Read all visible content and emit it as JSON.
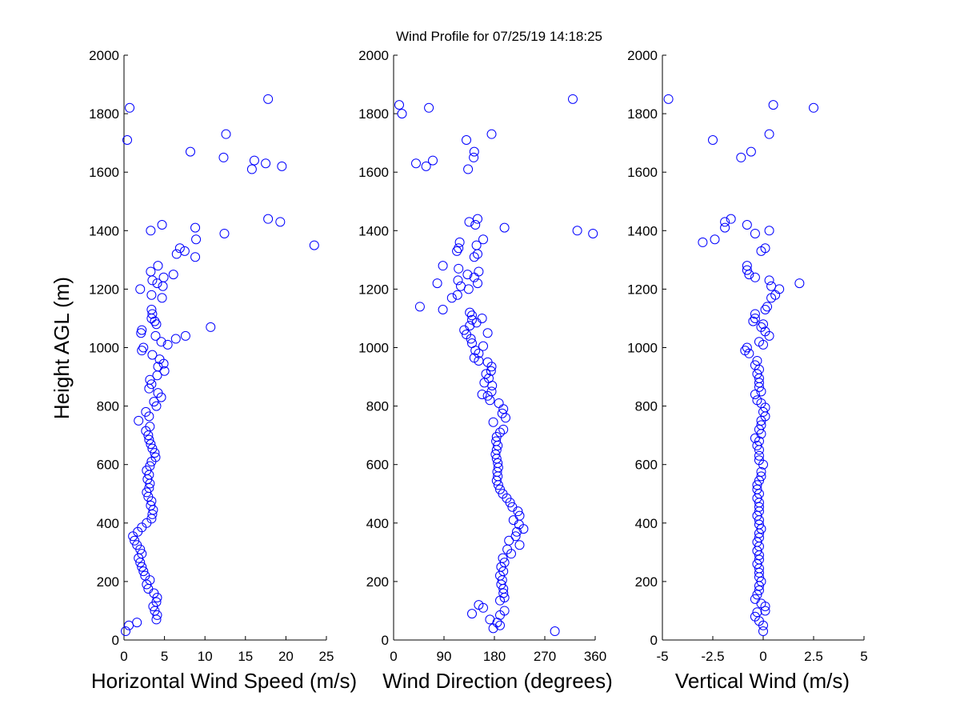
{
  "title": "Wind Profile for  07/25/19 14:18:25",
  "chart_data": [
    {
      "type": "scatter",
      "xlabel": "Horizontal Wind Speed (m/s)",
      "ylabel": "Height AGL (m)",
      "xlim": [
        0,
        25
      ],
      "ylim": [
        0,
        2000
      ],
      "xticks": [
        "0",
        "5",
        "10",
        "15",
        "20",
        "25"
      ],
      "yticks": [
        "0",
        "200",
        "400",
        "600",
        "800",
        "1000",
        "1200",
        "1400",
        "1600",
        "1800",
        "2000"
      ],
      "marker_color": "#0000ff",
      "points": [
        [
          0.2,
          30
        ],
        [
          0.6,
          50
        ],
        [
          1.6,
          60
        ],
        [
          4.0,
          70
        ],
        [
          4.1,
          85
        ],
        [
          3.8,
          100
        ],
        [
          3.6,
          115
        ],
        [
          4.0,
          130
        ],
        [
          4.1,
          145
        ],
        [
          3.7,
          160
        ],
        [
          3.0,
          175
        ],
        [
          2.8,
          190
        ],
        [
          3.2,
          205
        ],
        [
          2.6,
          220
        ],
        [
          2.4,
          235
        ],
        [
          2.2,
          250
        ],
        [
          2.0,
          265
        ],
        [
          1.8,
          280
        ],
        [
          2.2,
          295
        ],
        [
          2.0,
          310
        ],
        [
          1.6,
          325
        ],
        [
          1.3,
          340
        ],
        [
          1.1,
          355
        ],
        [
          1.7,
          370
        ],
        [
          2.2,
          385
        ],
        [
          2.8,
          400
        ],
        [
          3.4,
          415
        ],
        [
          3.5,
          430
        ],
        [
          3.6,
          445
        ],
        [
          3.3,
          460
        ],
        [
          3.4,
          475
        ],
        [
          3.0,
          490
        ],
        [
          2.8,
          505
        ],
        [
          3.1,
          520
        ],
        [
          3.2,
          535
        ],
        [
          2.9,
          550
        ],
        [
          3.1,
          565
        ],
        [
          2.8,
          580
        ],
        [
          3.2,
          595
        ],
        [
          3.4,
          610
        ],
        [
          3.9,
          625
        ],
        [
          3.8,
          640
        ],
        [
          3.5,
          655
        ],
        [
          3.3,
          670
        ],
        [
          3.1,
          685
        ],
        [
          3.0,
          700
        ],
        [
          2.7,
          715
        ],
        [
          3.2,
          730
        ],
        [
          1.8,
          750
        ],
        [
          3.1,
          765
        ],
        [
          2.7,
          780
        ],
        [
          4.0,
          800
        ],
        [
          3.7,
          815
        ],
        [
          4.6,
          830
        ],
        [
          4.2,
          845
        ],
        [
          3.1,
          860
        ],
        [
          3.4,
          875
        ],
        [
          3.2,
          890
        ],
        [
          4.1,
          905
        ],
        [
          5.0,
          920
        ],
        [
          4.2,
          935
        ],
        [
          4.9,
          945
        ],
        [
          4.4,
          960
        ],
        [
          3.5,
          975
        ],
        [
          2.2,
          990
        ],
        [
          2.4,
          1000
        ],
        [
          4.6,
          1020
        ],
        [
          3.9,
          1040
        ],
        [
          6.4,
          1030
        ],
        [
          7.6,
          1040
        ],
        [
          5.4,
          1010
        ],
        [
          2.1,
          1050
        ],
        [
          2.2,
          1060
        ],
        [
          10.7,
          1070
        ],
        [
          4.0,
          1080
        ],
        [
          3.8,
          1090
        ],
        [
          3.4,
          1100
        ],
        [
          3.5,
          1115
        ],
        [
          3.4,
          1130
        ],
        [
          4.7,
          1170
        ],
        [
          3.4,
          1180
        ],
        [
          2.0,
          1200
        ],
        [
          4.8,
          1210
        ],
        [
          4.1,
          1220
        ],
        [
          3.5,
          1230
        ],
        [
          4.9,
          1240
        ],
        [
          6.1,
          1250
        ],
        [
          3.3,
          1260
        ],
        [
          4.2,
          1280
        ],
        [
          8.8,
          1310
        ],
        [
          6.5,
          1320
        ],
        [
          7.5,
          1330
        ],
        [
          6.9,
          1340
        ],
        [
          8.9,
          1370
        ],
        [
          12.4,
          1390
        ],
        [
          3.3,
          1400
        ],
        [
          8.8,
          1410
        ],
        [
          4.7,
          1420
        ],
        [
          19.3,
          1430
        ],
        [
          17.8,
          1440
        ],
        [
          23.5,
          1350
        ],
        [
          15.8,
          1610
        ],
        [
          19.5,
          1620
        ],
        [
          17.5,
          1630
        ],
        [
          16.1,
          1640
        ],
        [
          12.3,
          1650
        ],
        [
          8.2,
          1670
        ],
        [
          0.4,
          1710
        ],
        [
          12.6,
          1730
        ],
        [
          0.7,
          1820
        ],
        [
          17.8,
          1850
        ]
      ]
    },
    {
      "type": "scatter",
      "xlabel": "Wind Direction (degrees)",
      "ylabel": "",
      "xlim": [
        0,
        360
      ],
      "ylim": [
        0,
        2000
      ],
      "xticks": [
        "0",
        "90",
        "180",
        "270",
        "360"
      ],
      "yticks": [
        "0",
        "200",
        "400",
        "600",
        "800",
        "1000",
        "1200",
        "1400",
        "1600",
        "1800",
        "2000"
      ],
      "marker_color": "#0000ff",
      "points": [
        [
          288,
          30
        ],
        [
          178,
          40
        ],
        [
          190,
          50
        ],
        [
          185,
          60
        ],
        [
          172,
          70
        ],
        [
          190,
          85
        ],
        [
          140,
          90
        ],
        [
          198,
          100
        ],
        [
          160,
          110
        ],
        [
          152,
          120
        ],
        [
          190,
          135
        ],
        [
          198,
          145
        ],
        [
          196,
          160
        ],
        [
          196,
          175
        ],
        [
          192,
          190
        ],
        [
          194,
          205
        ],
        [
          190,
          220
        ],
        [
          196,
          235
        ],
        [
          192,
          250
        ],
        [
          198,
          265
        ],
        [
          195,
          280
        ],
        [
          210,
          295
        ],
        [
          203,
          310
        ],
        [
          225,
          325
        ],
        [
          206,
          340
        ],
        [
          218,
          355
        ],
        [
          220,
          370
        ],
        [
          232,
          380
        ],
        [
          224,
          395
        ],
        [
          214,
          410
        ],
        [
          225,
          425
        ],
        [
          222,
          440
        ],
        [
          212,
          455
        ],
        [
          208,
          470
        ],
        [
          202,
          485
        ],
        [
          195,
          500
        ],
        [
          190,
          515
        ],
        [
          187,
          530
        ],
        [
          184,
          545
        ],
        [
          186,
          560
        ],
        [
          185,
          575
        ],
        [
          187,
          590
        ],
        [
          186,
          605
        ],
        [
          184,
          620
        ],
        [
          182,
          635
        ],
        [
          184,
          650
        ],
        [
          186,
          665
        ],
        [
          183,
          680
        ],
        [
          184,
          695
        ],
        [
          190,
          710
        ],
        [
          196,
          720
        ],
        [
          178,
          745
        ],
        [
          200,
          760
        ],
        [
          194,
          775
        ],
        [
          196,
          790
        ],
        [
          188,
          810
        ],
        [
          172,
          820
        ],
        [
          168,
          835
        ],
        [
          158,
          840
        ],
        [
          175,
          850
        ],
        [
          176,
          870
        ],
        [
          162,
          880
        ],
        [
          170,
          895
        ],
        [
          165,
          910
        ],
        [
          174,
          920
        ],
        [
          175,
          935
        ],
        [
          168,
          950
        ],
        [
          152,
          955
        ],
        [
          144,
          965
        ],
        [
          152,
          980
        ],
        [
          146,
          990
        ],
        [
          160,
          1005
        ],
        [
          140,
          1015
        ],
        [
          138,
          1030
        ],
        [
          130,
          1045
        ],
        [
          168,
          1050
        ],
        [
          126,
          1060
        ],
        [
          136,
          1075
        ],
        [
          148,
          1085
        ],
        [
          140,
          1095
        ],
        [
          158,
          1100
        ],
        [
          140,
          1110
        ],
        [
          136,
          1120
        ],
        [
          88,
          1130
        ],
        [
          47,
          1140
        ],
        [
          104,
          1170
        ],
        [
          114,
          1180
        ],
        [
          134,
          1200
        ],
        [
          120,
          1210
        ],
        [
          150,
          1220
        ],
        [
          78,
          1220
        ],
        [
          115,
          1230
        ],
        [
          144,
          1240
        ],
        [
          132,
          1250
        ],
        [
          152,
          1260
        ],
        [
          116,
          1270
        ],
        [
          88,
          1280
        ],
        [
          144,
          1310
        ],
        [
          150,
          1320
        ],
        [
          113,
          1330
        ],
        [
          116,
          1340
        ],
        [
          118,
          1360
        ],
        [
          148,
          1350
        ],
        [
          160,
          1370
        ],
        [
          198,
          1410
        ],
        [
          146,
          1420
        ],
        [
          135,
          1430
        ],
        [
          150,
          1440
        ],
        [
          328,
          1400
        ],
        [
          356,
          1390
        ],
        [
          133,
          1610
        ],
        [
          58,
          1620
        ],
        [
          40,
          1630
        ],
        [
          70,
          1640
        ],
        [
          143,
          1650
        ],
        [
          144,
          1670
        ],
        [
          130,
          1710
        ],
        [
          175,
          1730
        ],
        [
          15,
          1800
        ],
        [
          10,
          1830
        ],
        [
          63,
          1820
        ],
        [
          320,
          1850
        ]
      ]
    },
    {
      "type": "scatter",
      "xlabel": "Vertical Wind (m/s)",
      "ylabel": "",
      "xlim": [
        -5,
        5
      ],
      "ylim": [
        0,
        2000
      ],
      "xticks": [
        "-5",
        "-2.5",
        "0",
        "2.5",
        "5"
      ],
      "yticks": [
        "0",
        "200",
        "400",
        "600",
        "800",
        "1000",
        "1200",
        "1400",
        "1600",
        "1800",
        "2000"
      ],
      "marker_color": "#0000ff",
      "points": [
        [
          0.0,
          30
        ],
        [
          0.0,
          50
        ],
        [
          -0.2,
          65
        ],
        [
          -0.4,
          80
        ],
        [
          -0.3,
          95
        ],
        [
          0.1,
          100
        ],
        [
          0.1,
          115
        ],
        [
          -0.1,
          125
        ],
        [
          -0.4,
          140
        ],
        [
          -0.3,
          155
        ],
        [
          -0.2,
          170
        ],
        [
          -0.2,
          185
        ],
        [
          -0.1,
          200
        ],
        [
          -0.2,
          215
        ],
        [
          -0.2,
          230
        ],
        [
          -0.2,
          245
        ],
        [
          -0.3,
          260
        ],
        [
          -0.2,
          275
        ],
        [
          -0.2,
          290
        ],
        [
          -0.3,
          305
        ],
        [
          -0.2,
          320
        ],
        [
          -0.3,
          335
        ],
        [
          -0.2,
          350
        ],
        [
          -0.2,
          365
        ],
        [
          -0.1,
          380
        ],
        [
          -0.2,
          395
        ],
        [
          -0.2,
          410
        ],
        [
          -0.3,
          425
        ],
        [
          -0.2,
          440
        ],
        [
          -0.2,
          455
        ],
        [
          -0.2,
          470
        ],
        [
          -0.3,
          485
        ],
        [
          -0.2,
          500
        ],
        [
          -0.3,
          515
        ],
        [
          -0.3,
          530
        ],
        [
          -0.2,
          545
        ],
        [
          -0.1,
          560
        ],
        [
          -0.1,
          575
        ],
        [
          0.0,
          600
        ],
        [
          -0.2,
          615
        ],
        [
          -0.2,
          630
        ],
        [
          -0.2,
          650
        ],
        [
          -0.3,
          665
        ],
        [
          -0.2,
          680
        ],
        [
          -0.4,
          690
        ],
        [
          -0.1,
          705
        ],
        [
          -0.2,
          720
        ],
        [
          -0.1,
          735
        ],
        [
          -0.1,
          750
        ],
        [
          0.1,
          765
        ],
        [
          0.0,
          780
        ],
        [
          0.1,
          795
        ],
        [
          -0.1,
          810
        ],
        [
          -0.3,
          820
        ],
        [
          -0.4,
          840
        ],
        [
          -0.1,
          850
        ],
        [
          -0.2,
          865
        ],
        [
          -0.2,
          880
        ],
        [
          -0.2,
          895
        ],
        [
          -0.3,
          910
        ],
        [
          -0.2,
          925
        ],
        [
          -0.4,
          940
        ],
        [
          -0.3,
          955
        ],
        [
          -0.7,
          980
        ],
        [
          -0.9,
          990
        ],
        [
          -0.8,
          1000
        ],
        [
          -0.2,
          1020
        ],
        [
          0.0,
          1010
        ],
        [
          0.3,
          1040
        ],
        [
          0.1,
          1055
        ],
        [
          0.0,
          1080
        ],
        [
          -0.1,
          1070
        ],
        [
          -0.5,
          1090
        ],
        [
          -0.4,
          1100
        ],
        [
          -0.4,
          1115
        ],
        [
          0.1,
          1130
        ],
        [
          0.2,
          1140
        ],
        [
          0.4,
          1170
        ],
        [
          0.6,
          1180
        ],
        [
          0.8,
          1200
        ],
        [
          0.4,
          1210
        ],
        [
          0.3,
          1230
        ],
        [
          1.8,
          1220
        ],
        [
          -0.4,
          1240
        ],
        [
          -0.7,
          1250
        ],
        [
          -0.8,
          1265
        ],
        [
          -0.8,
          1280
        ],
        [
          -0.1,
          1330
        ],
        [
          0.1,
          1340
        ],
        [
          -2.4,
          1370
        ],
        [
          -3.0,
          1360
        ],
        [
          -0.4,
          1390
        ],
        [
          0.3,
          1400
        ],
        [
          -1.9,
          1410
        ],
        [
          -0.8,
          1420
        ],
        [
          -1.9,
          1430
        ],
        [
          -1.6,
          1440
        ],
        [
          -1.1,
          1650
        ],
        [
          -0.6,
          1670
        ],
        [
          -2.5,
          1710
        ],
        [
          0.3,
          1730
        ],
        [
          2.5,
          1820
        ],
        [
          0.5,
          1830
        ],
        [
          -4.7,
          1850
        ]
      ]
    }
  ]
}
